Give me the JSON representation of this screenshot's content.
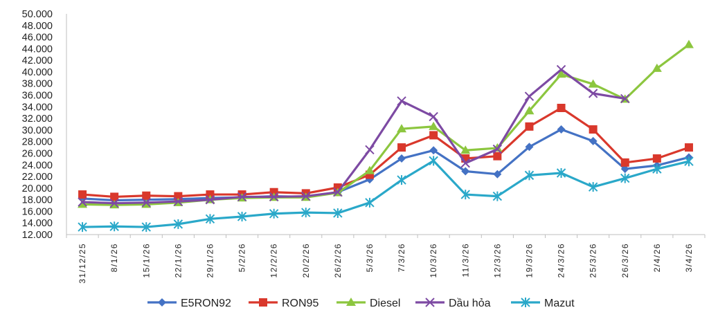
{
  "chart_data": {
    "type": "line",
    "title": "",
    "xlabel": "",
    "ylabel": "",
    "ylim": [
      12000,
      50000
    ],
    "ytick_step": 2000,
    "ytick_labels": [
      "12.000",
      "14.000",
      "16.000",
      "18.000",
      "20.000",
      "22.000",
      "24.000",
      "26.000",
      "28.000",
      "30.000",
      "32.000",
      "34.000",
      "36.000",
      "38.000",
      "40.000",
      "42.000",
      "44.000",
      "46.000",
      "48.000",
      "50.000"
    ],
    "grid": false,
    "legend_position": "bottom",
    "categories": [
      "31/12/25",
      "8/1/26",
      "15/1/26",
      "22/1/26",
      "29/1/26",
      "5/2/26",
      "12/2/26",
      "20/2/26",
      "26/2/26",
      "5/3/26",
      "7/3/26",
      "10/3/26",
      "11/3/26",
      "12/3/26",
      "19/3/26",
      "24/3/26",
      "25/3/26",
      "26/3/26",
      "2/4/26",
      "3/4/26"
    ],
    "series": [
      {
        "name": "E5RON92",
        "color": "#4472C4",
        "marker": "diamond",
        "values": [
          18200,
          17900,
          18000,
          18100,
          18300,
          18400,
          18600,
          18500,
          19300,
          21500,
          25100,
          26500,
          22900,
          22400,
          27100,
          30100,
          28100,
          23300,
          23900,
          25300
        ]
      },
      {
        "name": "RON95",
        "color": "#D9382C",
        "marker": "square",
        "values": [
          18900,
          18500,
          18700,
          18600,
          18900,
          18900,
          19300,
          19100,
          20100,
          22300,
          27000,
          29100,
          25100,
          25500,
          30600,
          33800,
          30100,
          24400,
          25100,
          27000
        ]
      },
      {
        "name": "Diesel",
        "color": "#8CC63F",
        "marker": "triangle",
        "values": [
          17200,
          17100,
          17200,
          17500,
          18000,
          18300,
          18400,
          18400,
          19200,
          23000,
          30200,
          30600,
          26500,
          26900,
          33300,
          39600,
          37900,
          35300,
          40600,
          44700
        ]
      },
      {
        "name": "Dầu hỏa",
        "color": "#7D4AA3",
        "marker": "x",
        "values": [
          17600,
          17400,
          17500,
          17700,
          18000,
          18500,
          18500,
          18600,
          19300,
          26600,
          35000,
          32300,
          24300,
          26700,
          35800,
          40400,
          36300,
          35400,
          null,
          null
        ]
      },
      {
        "name": "Mazut",
        "color": "#2AA8C9",
        "marker": "asterisk",
        "values": [
          13300,
          13400,
          13300,
          13800,
          14700,
          15100,
          15600,
          15800,
          15700,
          17500,
          21400,
          24700,
          18900,
          18600,
          22200,
          22600,
          20200,
          21700,
          23300,
          24600
        ]
      }
    ]
  }
}
